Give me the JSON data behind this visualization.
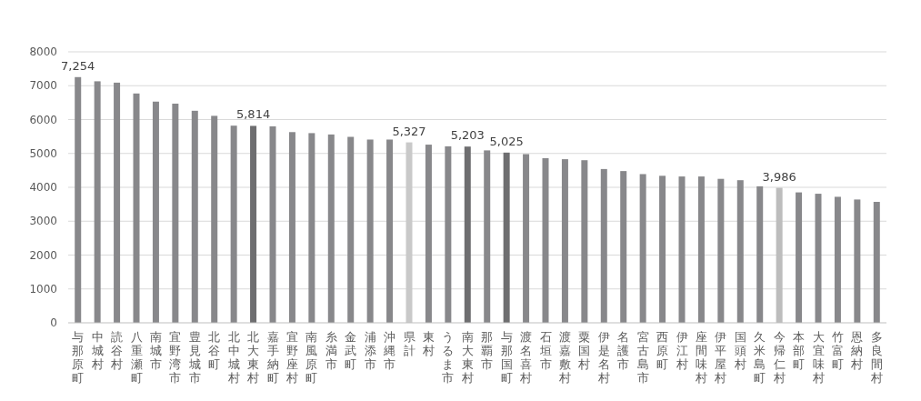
{
  "chart_data": {
    "type": "bar",
    "categories": [
      "与那原町",
      "中城村",
      "読谷村",
      "八重瀬町",
      "南城市",
      "宜野湾市",
      "豊見城市",
      "北谷町",
      "北中城村",
      "北大東村",
      "嘉手納町",
      "宜野座村",
      "南風原町",
      "糸満市",
      "金武町",
      "浦添市",
      "沖縄市",
      "県計",
      "東村",
      "うるま市",
      "南大東村",
      "那覇市",
      "与那国町",
      "渡名喜村",
      "石垣市",
      "渡嘉敷村",
      "粟国村",
      "伊是名村",
      "名護市",
      "宮古島市",
      "西原町",
      "伊江村",
      "座間味村",
      "伊平屋村",
      "国頭村",
      "久米島町",
      "今帰仁村",
      "本部町",
      "大宜味村",
      "竹富町",
      "恩納村",
      "多良間村"
    ],
    "values": [
      7254,
      7130,
      7090,
      6770,
      6530,
      6470,
      6260,
      6110,
      5820,
      5814,
      5800,
      5630,
      5600,
      5560,
      5490,
      5410,
      5410,
      5327,
      5260,
      5210,
      5203,
      5090,
      5025,
      4980,
      4860,
      4830,
      4800,
      4540,
      4480,
      4390,
      4340,
      4320,
      4320,
      4250,
      4210,
      4030,
      3986,
      3850,
      3810,
      3720,
      3640,
      3570
    ],
    "colors": [
      "#88888b",
      "#88888b",
      "#88888b",
      "#88888b",
      "#88888b",
      "#88888b",
      "#88888b",
      "#88888b",
      "#88888b",
      "#6e6e70",
      "#88888b",
      "#88888b",
      "#88888b",
      "#88888b",
      "#88888b",
      "#88888b",
      "#88888b",
      "#c9c9c9",
      "#88888b",
      "#88888b",
      "#6e6e70",
      "#88888b",
      "#6e6e70",
      "#88888b",
      "#88888b",
      "#88888b",
      "#88888b",
      "#88888b",
      "#88888b",
      "#88888b",
      "#88888b",
      "#88888b",
      "#88888b",
      "#88888b",
      "#88888b",
      "#88888b",
      "#bdbdbd",
      "#88888b",
      "#88888b",
      "#88888b",
      "#88888b",
      "#88888b"
    ],
    "value_labels": [
      "7,254",
      null,
      null,
      null,
      null,
      null,
      null,
      null,
      null,
      "5,814",
      null,
      null,
      null,
      null,
      null,
      null,
      null,
      "5,327",
      null,
      null,
      "5,203",
      null,
      "5,025",
      null,
      null,
      null,
      null,
      null,
      null,
      null,
      null,
      null,
      null,
      null,
      null,
      null,
      "3,986",
      null,
      null,
      null,
      null,
      null
    ],
    "ylim": [
      0,
      8000
    ],
    "yticks": [
      0,
      1000,
      2000,
      3000,
      4000,
      5000,
      6000,
      7000,
      8000
    ],
    "grid": "y"
  }
}
